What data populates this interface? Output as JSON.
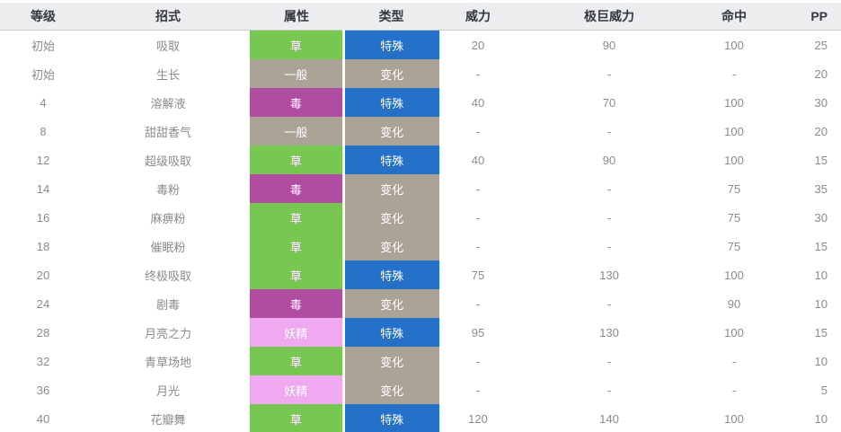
{
  "table": {
    "columns": [
      {
        "key": "level",
        "label": "等级"
      },
      {
        "key": "move",
        "label": "招式"
      },
      {
        "key": "type",
        "label": "属性"
      },
      {
        "key": "category",
        "label": "类型"
      },
      {
        "key": "power",
        "label": "威力"
      },
      {
        "key": "max_power",
        "label": "极巨威力"
      },
      {
        "key": "accuracy",
        "label": "命中"
      },
      {
        "key": "pp",
        "label": "PP"
      }
    ],
    "type_colors": {
      "草": "#77c850",
      "一般": "#aca397",
      "毒": "#b04da3",
      "妖精": "#f0a9f0"
    },
    "category_colors": {
      "特殊": "#2371c9",
      "变化": "#aca397"
    },
    "rows": [
      {
        "level": "初始",
        "move": "吸取",
        "type": "草",
        "category": "特殊",
        "power": "20",
        "max_power": "90",
        "accuracy": "100",
        "pp": "25"
      },
      {
        "level": "初始",
        "move": "生长",
        "type": "一般",
        "category": "变化",
        "power": "-",
        "max_power": "-",
        "accuracy": "-",
        "pp": "20"
      },
      {
        "level": "4",
        "move": "溶解液",
        "type": "毒",
        "category": "特殊",
        "power": "40",
        "max_power": "70",
        "accuracy": "100",
        "pp": "30"
      },
      {
        "level": "8",
        "move": "甜甜香气",
        "type": "一般",
        "category": "变化",
        "power": "-",
        "max_power": "-",
        "accuracy": "100",
        "pp": "20"
      },
      {
        "level": "12",
        "move": "超级吸取",
        "type": "草",
        "category": "特殊",
        "power": "40",
        "max_power": "90",
        "accuracy": "100",
        "pp": "15"
      },
      {
        "level": "14",
        "move": "毒粉",
        "type": "毒",
        "category": "变化",
        "power": "-",
        "max_power": "-",
        "accuracy": "75",
        "pp": "35"
      },
      {
        "level": "16",
        "move": "麻痹粉",
        "type": "草",
        "category": "变化",
        "power": "-",
        "max_power": "-",
        "accuracy": "75",
        "pp": "30"
      },
      {
        "level": "18",
        "move": "催眠粉",
        "type": "草",
        "category": "变化",
        "power": "-",
        "max_power": "-",
        "accuracy": "75",
        "pp": "15"
      },
      {
        "level": "20",
        "move": "终极吸取",
        "type": "草",
        "category": "特殊",
        "power": "75",
        "max_power": "130",
        "accuracy": "100",
        "pp": "10"
      },
      {
        "level": "24",
        "move": "剧毒",
        "type": "毒",
        "category": "变化",
        "power": "-",
        "max_power": "-",
        "accuracy": "90",
        "pp": "10"
      },
      {
        "level": "28",
        "move": "月亮之力",
        "type": "妖精",
        "category": "特殊",
        "power": "95",
        "max_power": "130",
        "accuracy": "100",
        "pp": "15"
      },
      {
        "level": "32",
        "move": "青草场地",
        "type": "草",
        "category": "变化",
        "power": "-",
        "max_power": "-",
        "accuracy": "-",
        "pp": "10"
      },
      {
        "level": "36",
        "move": "月光",
        "type": "妖精",
        "category": "变化",
        "power": "-",
        "max_power": "-",
        "accuracy": "-",
        "pp": "5"
      },
      {
        "level": "40",
        "move": "花瓣舞",
        "type": "草",
        "category": "特殊",
        "power": "120",
        "max_power": "140",
        "accuracy": "100",
        "pp": "10"
      }
    ]
  }
}
